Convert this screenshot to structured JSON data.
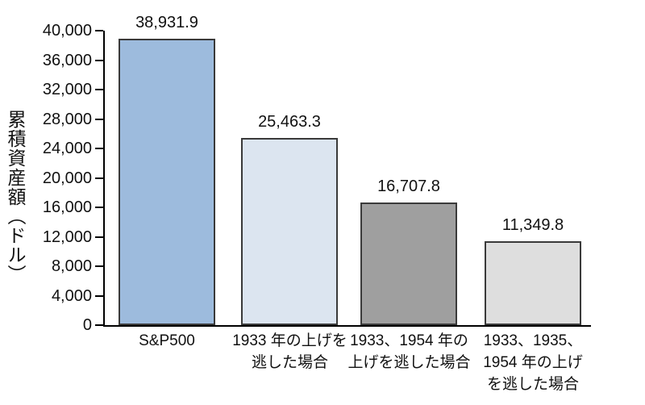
{
  "figure": {
    "background": "#ffffff",
    "axis_color": "#000000",
    "text_color": "#111111"
  },
  "chart_data": {
    "type": "bar",
    "title": "",
    "xlabel": "",
    "ylabel": "累積資産額（ドル）",
    "categories": [
      "S&P500",
      "1933 年の上げを逃した場合",
      "1933、1954 年の上げを逃した場合",
      "1933、1935、1954 年の上げを逃した場合"
    ],
    "category_lines": [
      [
        "S&P500"
      ],
      [
        "1933 年の上げを",
        "逃した場合"
      ],
      [
        "1933、1954 年の",
        "上げを逃した場合"
      ],
      [
        "1933、1935、",
        "1954 年の上げ",
        "を逃した場合"
      ]
    ],
    "values": [
      38931.9,
      25463.3,
      16707.8,
      11349.8
    ],
    "value_labels": [
      "38,931.9",
      "25,463.3",
      "16,707.8",
      "11,349.8"
    ],
    "bar_colors": [
      "#9dbbdd",
      "#dce5f0",
      "#9f9f9f",
      "#dedede"
    ],
    "bar_border_color": "#3a3a3a",
    "ylim": [
      0,
      40000
    ],
    "yticks": [
      0,
      4000,
      8000,
      12000,
      16000,
      20000,
      24000,
      28000,
      32000,
      36000,
      40000
    ],
    "ytick_labels": [
      "0",
      "4,000",
      "8,000",
      "12,000",
      "16,000",
      "20,000",
      "24,000",
      "28,000",
      "32,000",
      "36,000",
      "40,000"
    ],
    "grid": false,
    "legend": "none"
  }
}
